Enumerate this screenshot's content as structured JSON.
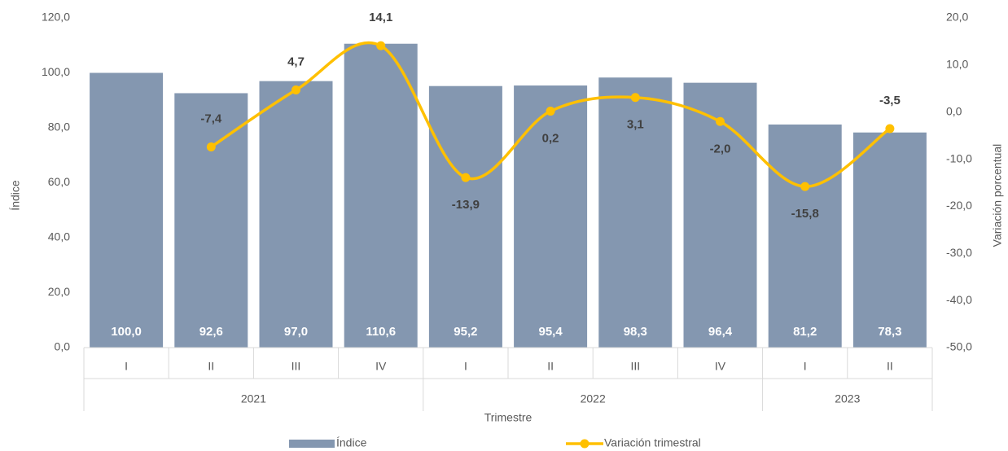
{
  "chart_data": {
    "type": "bar_line",
    "categories": [
      "I",
      "II",
      "III",
      "IV",
      "I",
      "II",
      "III",
      "IV",
      "I",
      "II"
    ],
    "groups": [
      {
        "name": "2021",
        "count": 4
      },
      {
        "name": "2022",
        "count": 4
      },
      {
        "name": "2023",
        "count": 2
      }
    ],
    "x_label": "Trimestre",
    "y_label": "Índice",
    "y2_label": "Variación porcentual",
    "series": [
      {
        "name": "Índice",
        "type": "bar",
        "color": "#8497b0",
        "values": [
          100.0,
          92.6,
          97.0,
          110.6,
          95.2,
          95.4,
          98.3,
          96.4,
          81.2,
          78.3
        ],
        "value_labels": [
          "100,0",
          "92,6",
          "97,0",
          "110,6",
          "95,2",
          "95,4",
          "98,3",
          "96,4",
          "81,2",
          "78,3"
        ]
      },
      {
        "name": "Variación trimestral",
        "type": "line",
        "axis": "y2",
        "color": "#ffc000",
        "smooth": true,
        "values": [
          null,
          -7.4,
          4.7,
          14.1,
          -13.9,
          0.2,
          3.1,
          -2.0,
          -15.8,
          -3.5
        ],
        "value_labels": [
          null,
          "-7,4",
          "4,7",
          "14,1",
          "-13,9",
          "0,2",
          "3,1",
          "-2,0",
          "-15,8",
          "-3,5"
        ]
      }
    ],
    "ylim": [
      0,
      120
    ],
    "yticks": [
      {
        "value": 0,
        "label": "0,0"
      },
      {
        "value": 20,
        "label": "20,0"
      },
      {
        "value": 40,
        "label": "40,0"
      },
      {
        "value": 60,
        "label": "60,0"
      },
      {
        "value": 80,
        "label": "80,0"
      },
      {
        "value": 100,
        "label": "100,0"
      },
      {
        "value": 120,
        "label": "120,0"
      }
    ],
    "y2lim": [
      -50,
      20
    ],
    "y2ticks": [
      {
        "value": -50,
        "label": "-50,0"
      },
      {
        "value": -40,
        "label": "-40,0"
      },
      {
        "value": -30,
        "label": "-30,0"
      },
      {
        "value": -20,
        "label": "-20,0"
      },
      {
        "value": -10,
        "label": "-10,0"
      },
      {
        "value": 0,
        "label": "0,0"
      },
      {
        "value": 10,
        "label": "10,0"
      },
      {
        "value": 20,
        "label": "20,0"
      }
    ],
    "legend": "bottom"
  }
}
